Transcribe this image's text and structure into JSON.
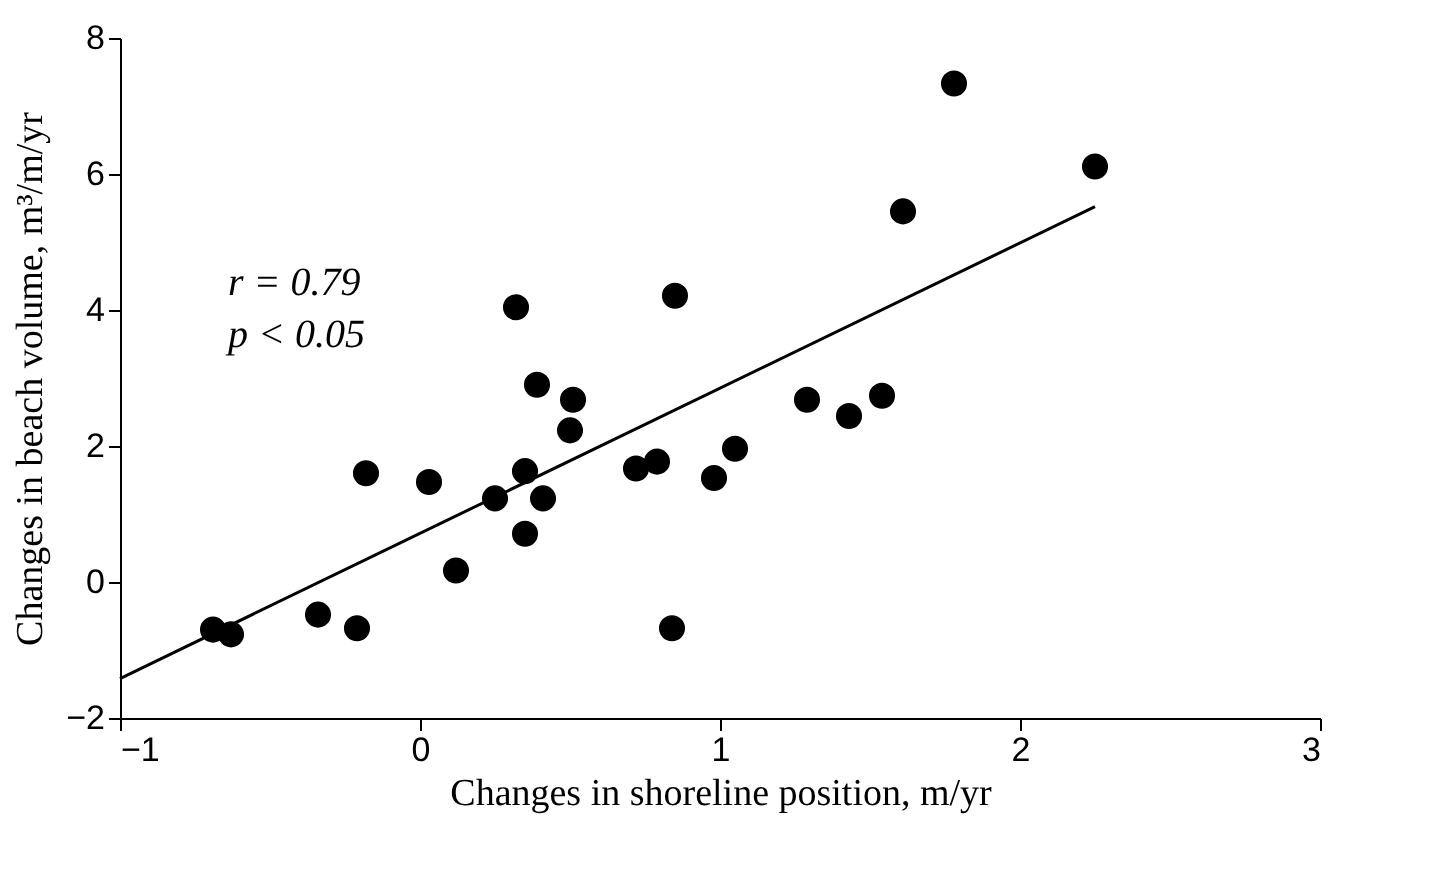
{
  "chart_data": {
    "type": "scatter",
    "xlabel": "Changes in shoreline position, m/yr",
    "ylabel": "Changes in beach volume, m³/m/yr",
    "xlim": [
      -1,
      3
    ],
    "xticks": [
      -1,
      0,
      1,
      2,
      3
    ],
    "ylim": [
      -2,
      8
    ],
    "yticks": [
      -2,
      0,
      2,
      4,
      6,
      8
    ],
    "grid": false,
    "marker": "circle",
    "annotations": [
      "r = 0.79",
      "p < 0.05"
    ],
    "series": [
      {
        "color": "#000000",
        "x": [
          -0.69,
          -0.63,
          -0.34,
          -0.21,
          -0.18,
          0.03,
          0.12,
          0.25,
          0.32,
          0.35,
          0.35,
          0.39,
          0.41,
          0.51,
          0.5,
          0.72,
          0.79,
          0.85,
          0.84,
          0.98,
          1.05,
          1.29,
          1.43,
          1.54,
          1.61,
          1.78,
          2.25
        ],
        "values": [
          -0.7,
          -0.77,
          -0.48,
          -0.68,
          1.6,
          1.47,
          0.17,
          1.23,
          4.04,
          0.71,
          1.63,
          2.9,
          1.23,
          2.68,
          2.23,
          1.67,
          1.77,
          4.21,
          -0.68,
          1.53,
          1.96,
          2.68,
          2.44,
          2.74,
          5.45,
          7.33,
          6.11
        ]
      },
      {
        "type": "line",
        "color": "#000000",
        "line_style": "solid",
        "marker": "none",
        "x": [
          -1,
          2.25
        ],
        "values": [
          -1.42,
          5.52
        ]
      }
    ]
  }
}
